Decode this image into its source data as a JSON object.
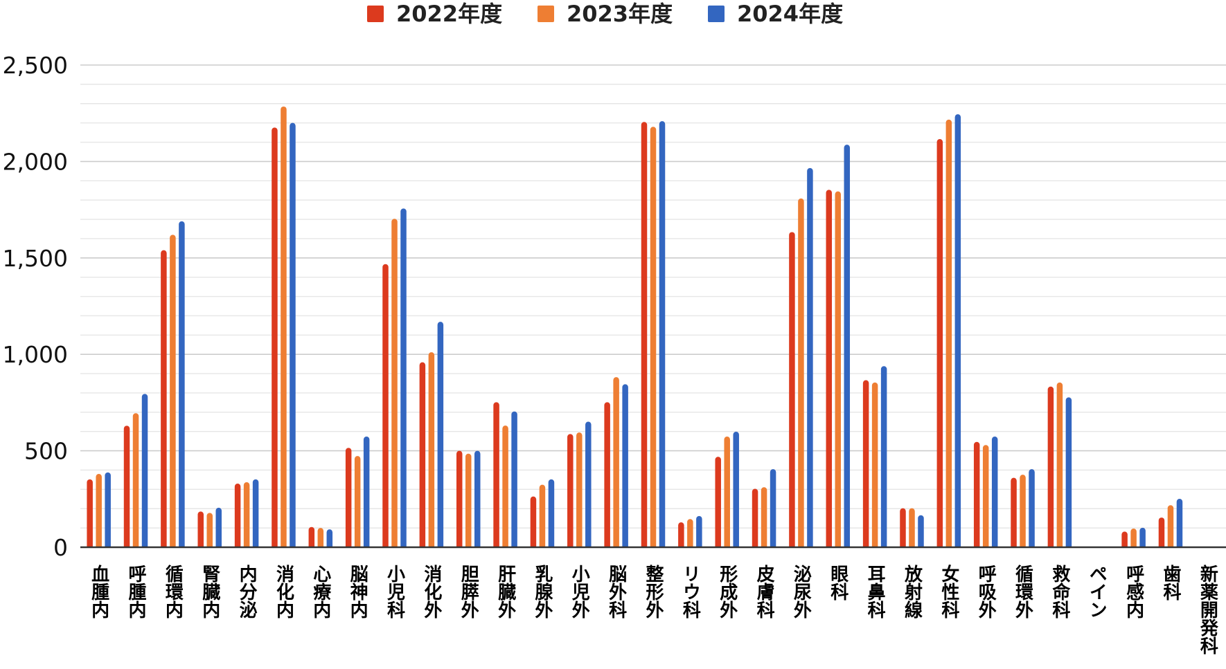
{
  "chart_data": {
    "type": "bar",
    "title": "",
    "xlabel": "",
    "ylabel": "",
    "ylim": [
      0,
      2500
    ],
    "yticks": [
      0,
      500,
      1000,
      1500,
      2000,
      2500
    ],
    "ytick_labels": [
      "0",
      "500",
      "1,000",
      "1,500",
      "2,000",
      "2,500"
    ],
    "grid": true,
    "legend_position": "top-center",
    "categories": [
      "血腫内",
      "呼腫内",
      "循環内",
      "腎臓内",
      "内分泌",
      "消化内",
      "心療内",
      "脳神内",
      "小児科",
      "消化外",
      "胆膵外",
      "肝臓外",
      "乳腺外",
      "小児外",
      "脳外科",
      "整形外",
      "リウ科",
      "形成外",
      "皮膚科",
      "泌尿外",
      "眼科",
      "耳鼻科",
      "放射線",
      "女性科",
      "呼吸外",
      "循環外",
      "救命科",
      "ペイン",
      "呼感内",
      "歯科",
      "新薬開発科"
    ],
    "series": [
      {
        "name": "2022年度",
        "color": "#DC3A1E",
        "values": [
          352,
          630,
          1540,
          185,
          330,
          2176,
          105,
          515,
          1468,
          959,
          500,
          752,
          263,
          587,
          752,
          2205,
          129,
          469,
          303,
          1634,
          1853,
          866,
          202,
          2116,
          546,
          360,
          833,
          null,
          81,
          154,
          null
        ]
      },
      {
        "name": "2023年度",
        "color": "#EE7E33",
        "values": [
          380,
          695,
          1620,
          178,
          337,
          2285,
          100,
          473,
          1703,
          1011,
          485,
          631,
          324,
          595,
          882,
          2180,
          146,
          574,
          311,
          1808,
          1845,
          854,
          202,
          2217,
          530,
          376,
          854,
          null,
          97,
          218,
          null
        ]
      },
      {
        "name": "2024年度",
        "color": "#3366C0",
        "values": [
          388,
          795,
          1690,
          205,
          352,
          2200,
          93,
          574,
          1756,
          1169,
          500,
          704,
          352,
          651,
          845,
          2209,
          162,
          599,
          405,
          1966,
          2087,
          939,
          166,
          2245,
          574,
          405,
          777,
          null,
          101,
          251,
          null
        ]
      }
    ]
  }
}
